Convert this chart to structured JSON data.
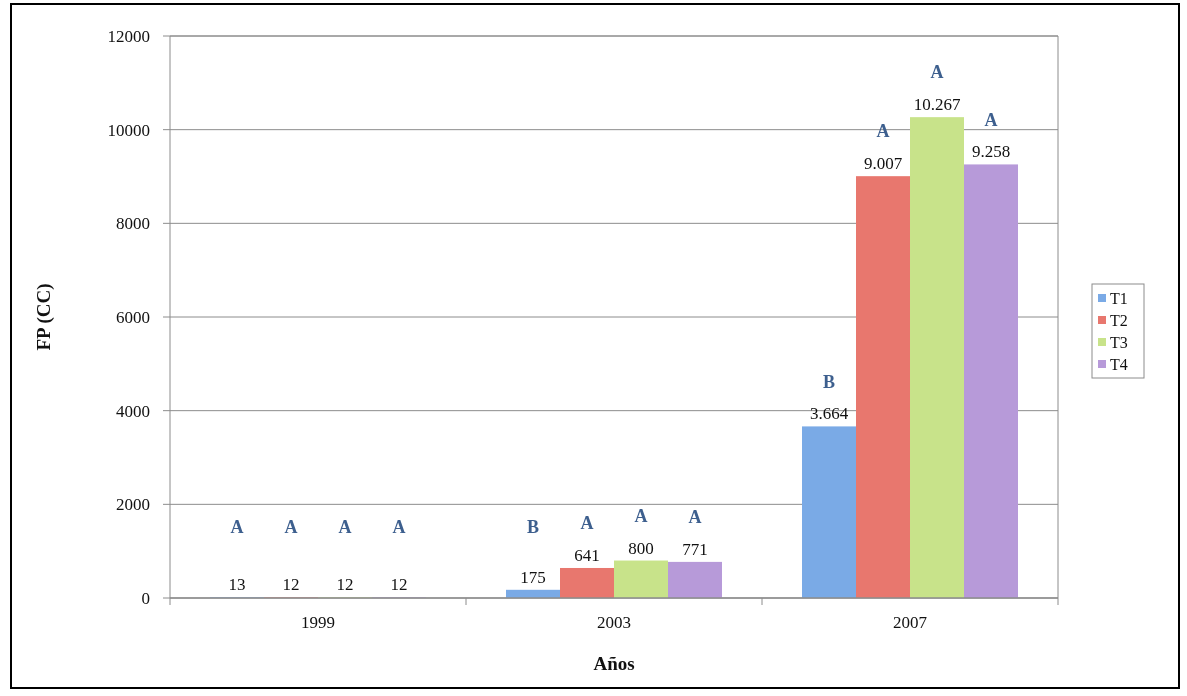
{
  "chart_data": {
    "type": "bar",
    "xlabel": "Años",
    "ylabel": "FP (CC)",
    "categories": [
      "1999",
      "2003",
      "2007"
    ],
    "series": [
      {
        "name": "T1",
        "color": "#7aaae6",
        "values": [
          13,
          175,
          3664
        ],
        "value_labels": [
          "13",
          "175",
          "3.664"
        ]
      },
      {
        "name": "T2",
        "color": "#e8776e",
        "values": [
          12,
          641,
          9007
        ],
        "value_labels": [
          "12",
          "641",
          "9.007"
        ]
      },
      {
        "name": "T3",
        "color": "#c8e38a",
        "values": [
          12,
          800,
          10267
        ],
        "value_labels": [
          "12",
          "800",
          "10.267"
        ]
      },
      {
        "name": "T4",
        "color": "#b79ad9",
        "values": [
          12,
          771,
          9258
        ],
        "value_labels": [
          "12",
          "771",
          "9.258"
        ]
      }
    ],
    "ylim": [
      0,
      12000
    ],
    "yticks": [
      0,
      2000,
      4000,
      6000,
      8000,
      10000,
      12000
    ],
    "grid": "y",
    "legend": "right",
    "annotations": [
      "A",
      "A",
      "A",
      "A",
      "B",
      "A",
      "A",
      "A",
      "B",
      "A",
      "A",
      "A"
    ]
  }
}
